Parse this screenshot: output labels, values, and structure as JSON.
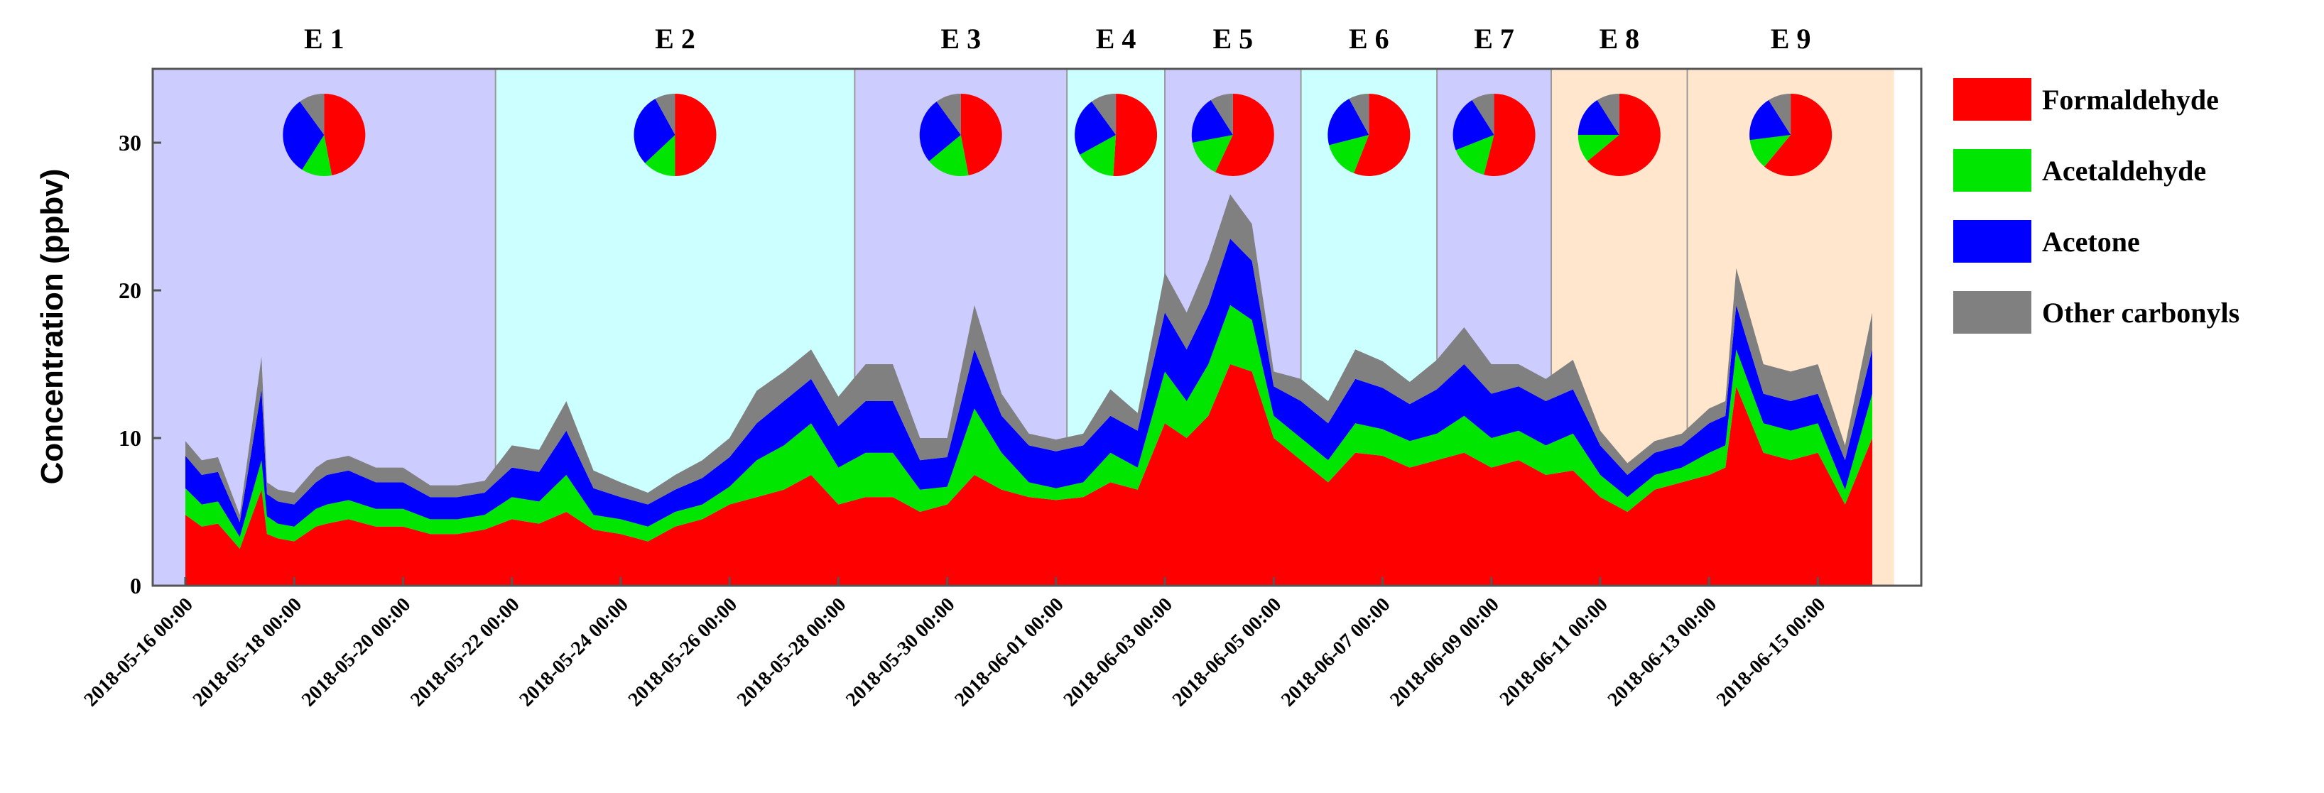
{
  "chart_data": {
    "type": "area",
    "stacked": true,
    "title": "",
    "xlabel": "",
    "ylabel": "Concentration (ppbv)",
    "ylim": [
      0,
      35
    ],
    "yticks": [
      0,
      10,
      20,
      30
    ],
    "x_start_day": 0,
    "x_end_day": 31.4,
    "x_data_start_day": 0,
    "x_tick_labels": [
      "2018-05-16 00:00",
      "2018-05-18 00:00",
      "2018-05-20 00:00",
      "2018-05-22 00:00",
      "2018-05-24 00:00",
      "2018-05-26 00:00",
      "2018-05-28 00:00",
      "2018-05-30 00:00",
      "2018-06-01 00:00",
      "2018-06-03 00:00",
      "2018-06-05 00:00",
      "2018-06-07 00:00",
      "2018-06-09 00:00",
      "2018-06-11 00:00",
      "2018-06-13 00:00",
      "2018-06-15 00:00"
    ],
    "x_tick_days": [
      0,
      2,
      4,
      6,
      8,
      10,
      12,
      14,
      16,
      18,
      20,
      22,
      24,
      26,
      28,
      30
    ],
    "colors": {
      "Formaldehyde": "#ff0000",
      "Acetaldehyde": "#00e600",
      "Acetone": "#0000ff",
      "Other carbonyls": "#808080"
    },
    "series": [
      {
        "name": "Formaldehyde",
        "x_days": [
          0,
          0.3,
          0.6,
          1.0,
          1.4,
          1.5,
          1.7,
          2.0,
          2.4,
          2.6,
          3.0,
          3.5,
          4.0,
          4.5,
          5.0,
          5.5,
          6.0,
          6.5,
          7.0,
          7.5,
          8.0,
          8.5,
          9.0,
          9.5,
          10.0,
          10.5,
          11.0,
          11.5,
          12.0,
          12.5,
          13.0,
          13.5,
          14.0,
          14.5,
          15.0,
          15.5,
          16.0,
          16.5,
          17.0,
          17.5,
          18.0,
          18.4,
          18.8,
          19.2,
          19.6,
          20.0,
          20.5,
          21.0,
          21.5,
          22.0,
          22.5,
          23.0,
          23.5,
          24.0,
          24.5,
          25.0,
          25.5,
          26.0,
          26.5,
          27.0,
          27.5,
          28.0,
          28.3,
          28.5,
          29.0,
          29.5,
          30.0,
          30.5,
          31.0
        ],
        "values": [
          4.8,
          4.0,
          4.2,
          2.5,
          6.5,
          3.5,
          3.2,
          3.0,
          4.0,
          4.2,
          4.5,
          4.0,
          4.0,
          3.5,
          3.5,
          3.8,
          4.5,
          4.2,
          5.0,
          3.8,
          3.5,
          3.0,
          4.0,
          4.5,
          5.5,
          6.0,
          6.5,
          7.5,
          5.5,
          6.0,
          6.0,
          5.0,
          5.5,
          7.5,
          6.5,
          6.0,
          5.8,
          6.0,
          7.0,
          6.5,
          11.0,
          10.0,
          11.5,
          15.0,
          14.5,
          10.0,
          8.5,
          7.0,
          9.0,
          8.8,
          8.0,
          8.5,
          9.0,
          8.0,
          8.5,
          7.5,
          7.8,
          6.0,
          5.0,
          6.5,
          7.0,
          7.5,
          8.0,
          13.5,
          9.0,
          8.5,
          9.0,
          5.5,
          10.0
        ]
      },
      {
        "name": "Acetaldehyde",
        "x_days": [
          0,
          0.3,
          0.6,
          1.0,
          1.4,
          1.5,
          1.7,
          2.0,
          2.4,
          2.6,
          3.0,
          3.5,
          4.0,
          4.5,
          5.0,
          5.5,
          6.0,
          6.5,
          7.0,
          7.5,
          8.0,
          8.5,
          9.0,
          9.5,
          10.0,
          10.5,
          11.0,
          11.5,
          12.0,
          12.5,
          13.0,
          13.5,
          14.0,
          14.5,
          15.0,
          15.5,
          16.0,
          16.5,
          17.0,
          17.5,
          18.0,
          18.4,
          18.8,
          19.2,
          19.6,
          20.0,
          20.5,
          21.0,
          21.5,
          22.0,
          22.5,
          23.0,
          23.5,
          24.0,
          24.5,
          25.0,
          25.5,
          26.0,
          26.5,
          27.0,
          27.5,
          28.0,
          28.3,
          28.5,
          29.0,
          29.5,
          30.0,
          30.5,
          31.0
        ],
        "values": [
          1.8,
          1.5,
          1.5,
          0.8,
          2.0,
          1.2,
          1.0,
          1.0,
          1.2,
          1.3,
          1.3,
          1.2,
          1.2,
          1.0,
          1.0,
          1.0,
          1.5,
          1.5,
          2.5,
          1.0,
          1.0,
          1.0,
          1.0,
          1.0,
          1.2,
          2.5,
          3.0,
          3.5,
          2.5,
          3.0,
          3.0,
          1.5,
          1.2,
          4.5,
          2.5,
          1.0,
          0.8,
          1.0,
          2.0,
          1.5,
          3.5,
          2.5,
          3.5,
          4.0,
          3.5,
          1.5,
          1.5,
          1.5,
          2.0,
          1.8,
          1.8,
          1.8,
          2.5,
          2.0,
          2.0,
          2.0,
          2.5,
          1.5,
          1.0,
          1.0,
          1.0,
          1.5,
          1.5,
          2.5,
          2.0,
          2.0,
          2.0,
          1.0,
          3.0
        ]
      },
      {
        "name": "Acetone",
        "x_days": [
          0,
          0.3,
          0.6,
          1.0,
          1.4,
          1.5,
          1.7,
          2.0,
          2.4,
          2.6,
          3.0,
          3.5,
          4.0,
          4.5,
          5.0,
          5.5,
          6.0,
          6.5,
          7.0,
          7.5,
          8.0,
          8.5,
          9.0,
          9.5,
          10.0,
          10.5,
          11.0,
          11.5,
          12.0,
          12.5,
          13.0,
          13.5,
          14.0,
          14.5,
          15.0,
          15.5,
          16.0,
          16.5,
          17.0,
          17.5,
          18.0,
          18.4,
          18.8,
          19.2,
          19.6,
          20.0,
          20.5,
          21.0,
          21.5,
          22.0,
          22.5,
          23.0,
          23.5,
          24.0,
          24.5,
          25.0,
          25.5,
          26.0,
          26.5,
          27.0,
          27.5,
          28.0,
          28.3,
          28.5,
          29.0,
          29.5,
          30.0,
          30.5,
          31.0
        ],
        "values": [
          2.2,
          2.0,
          2.0,
          1.0,
          4.8,
          1.5,
          1.5,
          1.5,
          1.8,
          2.0,
          2.0,
          1.8,
          1.8,
          1.5,
          1.5,
          1.5,
          2.0,
          2.0,
          3.0,
          1.8,
          1.5,
          1.5,
          1.5,
          1.8,
          2.0,
          2.5,
          3.0,
          3.0,
          2.8,
          3.5,
          3.5,
          2.0,
          2.0,
          4.0,
          2.5,
          2.5,
          2.5,
          2.5,
          2.5,
          2.5,
          4.0,
          3.5,
          4.0,
          4.5,
          4.0,
          2.0,
          2.5,
          2.5,
          3.0,
          2.8,
          2.5,
          3.0,
          3.5,
          3.0,
          3.0,
          3.0,
          3.0,
          2.0,
          1.5,
          1.5,
          1.5,
          2.0,
          2.0,
          3.0,
          2.0,
          2.0,
          2.0,
          2.0,
          3.0
        ]
      },
      {
        "name": "Other carbonyls",
        "x_days": [
          0,
          0.3,
          0.6,
          1.0,
          1.4,
          1.5,
          1.7,
          2.0,
          2.4,
          2.6,
          3.0,
          3.5,
          4.0,
          4.5,
          5.0,
          5.5,
          6.0,
          6.5,
          7.0,
          7.5,
          8.0,
          8.5,
          9.0,
          9.5,
          10.0,
          10.5,
          11.0,
          11.5,
          12.0,
          12.5,
          13.0,
          13.5,
          14.0,
          14.5,
          15.0,
          15.5,
          16.0,
          16.5,
          17.0,
          17.5,
          18.0,
          18.4,
          18.8,
          19.2,
          19.6,
          20.0,
          20.5,
          21.0,
          21.5,
          22.0,
          22.5,
          23.0,
          23.5,
          24.0,
          24.5,
          25.0,
          25.5,
          26.0,
          26.5,
          27.0,
          27.5,
          28.0,
          28.3,
          28.5,
          29.0,
          29.5,
          30.0,
          30.5,
          31.0
        ],
        "values": [
          1.0,
          1.0,
          1.0,
          0.5,
          2.2,
          0.8,
          0.8,
          0.8,
          1.0,
          1.0,
          1.0,
          1.0,
          1.0,
          0.8,
          0.8,
          0.8,
          1.5,
          1.5,
          2.0,
          1.2,
          1.0,
          0.8,
          1.0,
          1.2,
          1.3,
          2.2,
          2.0,
          2.0,
          2.0,
          2.5,
          2.5,
          1.5,
          1.3,
          3.0,
          1.5,
          0.8,
          0.8,
          0.8,
          1.8,
          1.2,
          2.7,
          2.5,
          3.0,
          3.0,
          2.5,
          1.0,
          1.5,
          1.5,
          2.0,
          1.8,
          1.5,
          2.0,
          2.5,
          2.0,
          1.5,
          1.5,
          2.0,
          1.0,
          0.8,
          0.8,
          0.8,
          1.0,
          1.0,
          2.5,
          2.0,
          2.0,
          2.0,
          1.0,
          2.5
        ]
      }
    ],
    "episodes": [
      {
        "label": "E 1",
        "start_day": -0.6,
        "end_day": 5.7,
        "color": "#ccccff",
        "pie": [
          47,
          12,
          31,
          10
        ]
      },
      {
        "label": "E 2",
        "start_day": 5.7,
        "end_day": 12.3,
        "color": "#ccffff",
        "pie": [
          50,
          13,
          29,
          8
        ]
      },
      {
        "label": "E 3",
        "start_day": 12.3,
        "end_day": 16.2,
        "color": "#ccccff",
        "pie": [
          47,
          17,
          26,
          10
        ]
      },
      {
        "label": "E 4",
        "start_day": 16.2,
        "end_day": 18.0,
        "color": "#ccffff",
        "pie": [
          51,
          16,
          23,
          10
        ]
      },
      {
        "label": "E 5",
        "start_day": 18.0,
        "end_day": 20.5,
        "color": "#ccccff",
        "pie": [
          57,
          15,
          19,
          9
        ]
      },
      {
        "label": "E 6",
        "start_day": 20.5,
        "end_day": 23.0,
        "color": "#ccffff",
        "pie": [
          56,
          15,
          21,
          8
        ]
      },
      {
        "label": "E 7",
        "start_day": 23.0,
        "end_day": 25.1,
        "color": "#ccccff",
        "pie": [
          54,
          15,
          22,
          9
        ]
      },
      {
        "label": "E 8",
        "start_day": 25.1,
        "end_day": 27.6,
        "color": "#ffe6cc",
        "pie": [
          64,
          11,
          16,
          9
        ]
      },
      {
        "label": "E 9",
        "start_day": 27.6,
        "end_day": 31.4,
        "color": "#ffe6cc",
        "pie": [
          61,
          12,
          18,
          9
        ]
      }
    ],
    "legend": [
      "Formaldehyde",
      "Acetaldehyde",
      "Acetone",
      "Other carbonyls"
    ],
    "legend_position": "right"
  }
}
